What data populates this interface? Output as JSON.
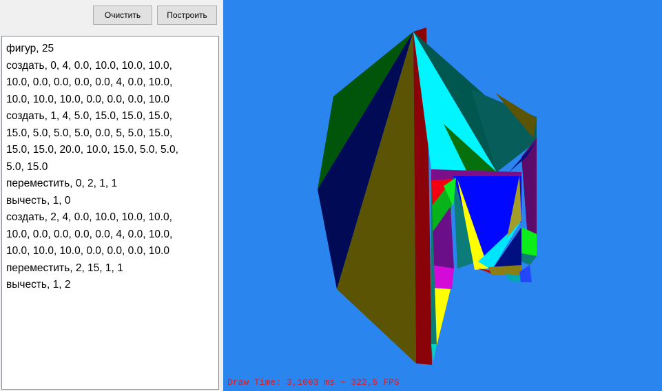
{
  "toolbar": {
    "clear_label": "Очистить",
    "build_label": "Построить"
  },
  "editor": {
    "lines": [
      "фигур, 25",
      "создать, 0, 4, 0.0, 10.0, 10.0, 10.0,",
      "10.0, 0.0, 0.0, 0.0, 0.0, 4, 0.0, 10.0,",
      "10.0, 10.0, 10.0, 0.0, 0.0, 0.0, 10.0",
      "создать, 1, 4, 5.0, 15.0, 15.0, 15.0,",
      "15.0, 5.0, 5.0, 5.0, 0.0, 5, 5.0, 15.0,",
      "15.0, 15.0, 20.0, 10.0, 15.0, 5.0, 5.0,",
      "5.0, 15.0",
      "переместить, 0, 2, 1, 1",
      "вычесть, 1, 0",
      "создать, 2, 4, 0.0, 10.0, 10.0, 10.0,",
      "10.0, 0.0, 0.0, 0.0, 0.0, 4, 0.0, 10.0,",
      "10.0, 10.0, 10.0, 0.0, 0.0, 0.0, 10.0",
      "переместить, 2, 15, 1, 1",
      "вычесть, 1, 2"
    ]
  },
  "viewport": {
    "background_color": "#2b85ef",
    "status_text": "Draw Time: 3,1003 ms ~ 322,5 FPS",
    "status_color": "#e8151a"
  }
}
